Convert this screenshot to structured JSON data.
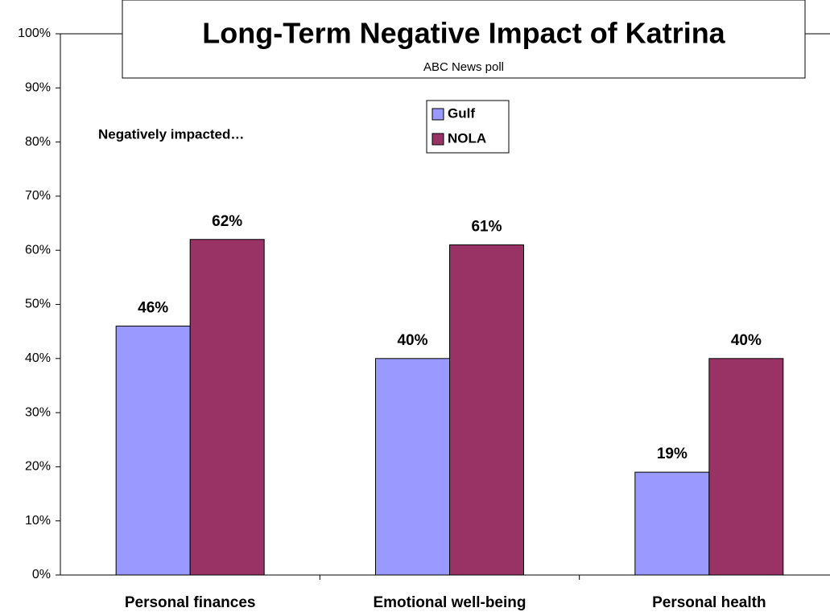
{
  "chart_data": {
    "type": "bar",
    "title": "Long-Term Negative Impact of Katrina",
    "subtitle": "ABC News poll",
    "annotation": "Negatively impacted…",
    "categories": [
      "Personal finances",
      "Emotional well-being",
      "Personal health"
    ],
    "series": [
      {
        "name": "Gulf",
        "color": "#9999ff",
        "values": [
          46,
          40,
          19
        ],
        "value_labels": [
          "46%",
          "40%",
          "19%"
        ]
      },
      {
        "name": "NOLA",
        "color": "#993366",
        "values": [
          62,
          61,
          40
        ],
        "value_labels": [
          "62%",
          "61%",
          "40%"
        ]
      }
    ],
    "ylim": [
      0,
      100
    ],
    "yticks": [
      {
        "value": 0,
        "label": "0%"
      },
      {
        "value": 10,
        "label": "10%"
      },
      {
        "value": 20,
        "label": "20%"
      },
      {
        "value": 30,
        "label": "30%"
      },
      {
        "value": 40,
        "label": "40%"
      },
      {
        "value": 50,
        "label": "50%"
      },
      {
        "value": 60,
        "label": "60%"
      },
      {
        "value": 70,
        "label": "70%"
      },
      {
        "value": 80,
        "label": "80%"
      },
      {
        "value": 90,
        "label": "90%"
      },
      {
        "value": 100,
        "label": "100%"
      }
    ],
    "grid": false,
    "legend": "top"
  }
}
